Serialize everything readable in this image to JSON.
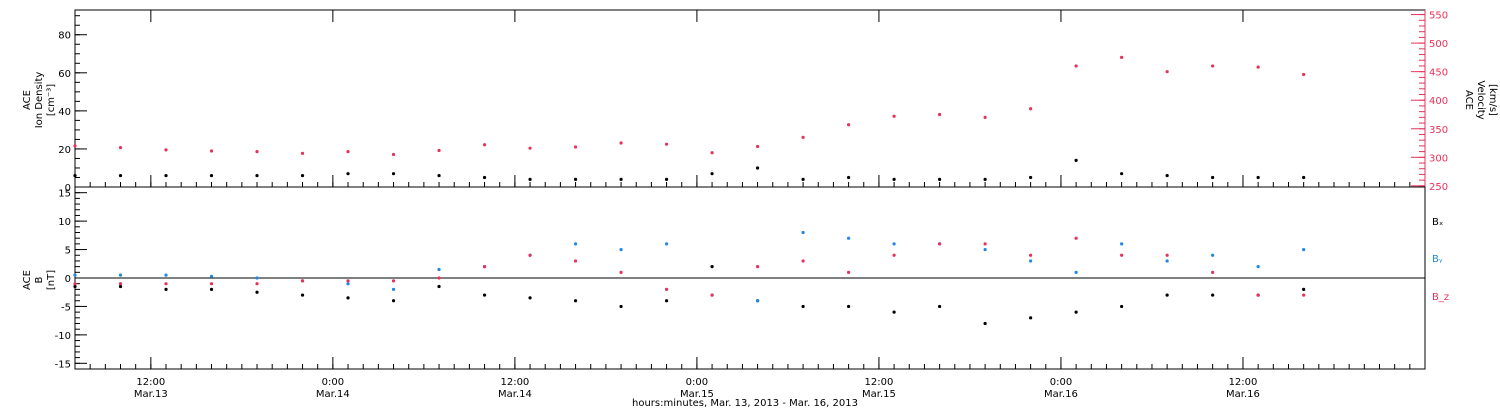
{
  "chart_data": [
    {
      "type": "scatter",
      "panel": "top",
      "ylabel_left": [
        "ACE",
        "Ion Density",
        "[cm⁻³]"
      ],
      "ylabel_right": [
        "ACE",
        "Velocity",
        "[km/s]"
      ],
      "ylim_left": [
        0,
        93
      ],
      "ylim_right": [
        248,
        558
      ],
      "yticks_left": [
        0,
        20,
        40,
        60,
        80
      ],
      "yticks_right": [
        250,
        300,
        350,
        400,
        450,
        500,
        550
      ],
      "series": [
        {
          "color": "#000000",
          "axis": "left",
          "x": [
            0,
            3,
            6,
            9,
            12,
            15,
            18,
            21,
            24,
            27,
            30,
            33,
            36,
            39,
            42,
            45,
            48,
            51,
            54,
            57,
            60,
            63,
            66,
            69,
            72,
            75,
            78,
            81
          ],
          "y": [
            6,
            6,
            6,
            6,
            6,
            6,
            7,
            7,
            6,
            5,
            4,
            4,
            4,
            4,
            7,
            10,
            4,
            5,
            4,
            4,
            4,
            5,
            14,
            7,
            6,
            5,
            5,
            5
          ]
        },
        {
          "color": "#e8315a",
          "axis": "right",
          "x": [
            0,
            3,
            6,
            9,
            12,
            15,
            18,
            21,
            24,
            27,
            30,
            33,
            36,
            39,
            42,
            45,
            48,
            51,
            54,
            57,
            60,
            63,
            66,
            69,
            72,
            75,
            78,
            81
          ],
          "y": [
            320,
            317,
            313,
            311,
            310,
            307,
            310,
            305,
            312,
            322,
            316,
            318,
            325,
            323,
            308,
            319,
            335,
            357,
            372,
            375,
            370,
            385,
            460,
            475,
            450,
            460,
            458,
            445
          ]
        }
      ]
    },
    {
      "type": "scatter",
      "panel": "bottom",
      "ylabel": [
        "ACE",
        "B",
        "[nT]"
      ],
      "ylim": [
        -16,
        16
      ],
      "yticks": [
        -15,
        -10,
        -5,
        0,
        5,
        10,
        15
      ],
      "legend": [
        "Bₓ",
        "Bᵧ",
        "B_z"
      ],
      "series": [
        {
          "name": "Bₓ",
          "color": "#000000",
          "x": [
            0,
            3,
            6,
            9,
            12,
            15,
            18,
            21,
            24,
            27,
            30,
            33,
            36,
            39,
            42,
            45,
            48,
            51,
            54,
            57,
            60,
            63,
            66,
            69,
            72,
            75,
            78,
            81
          ],
          "y": [
            -1.5,
            -1.5,
            -2,
            -2,
            -2.5,
            -3,
            -3.5,
            -4,
            -1.5,
            -3,
            -3.5,
            -4,
            -5,
            -4,
            2,
            -4,
            -5,
            -5,
            -6,
            -5,
            -8,
            -7,
            -6,
            -5,
            -3,
            -3,
            -3,
            -2
          ]
        },
        {
          "name": "Bᵧ",
          "color": "#1e88e5",
          "x": [
            0,
            3,
            6,
            9,
            12,
            15,
            18,
            21,
            24,
            27,
            30,
            33,
            36,
            39,
            42,
            45,
            48,
            51,
            54,
            57,
            60,
            63,
            66,
            69,
            72,
            75,
            78,
            81
          ],
          "y": [
            0.5,
            0.5,
            0.5,
            0.3,
            0,
            -0.5,
            -1,
            -2,
            1.5,
            2,
            4,
            6,
            5,
            6,
            -3,
            -4,
            8,
            7,
            6,
            6,
            5,
            3,
            1,
            6,
            3,
            4,
            2,
            5
          ]
        },
        {
          "name": "B_z",
          "color": "#e8315a",
          "x": [
            0,
            3,
            6,
            9,
            12,
            15,
            18,
            21,
            24,
            27,
            30,
            33,
            36,
            39,
            42,
            45,
            48,
            51,
            54,
            57,
            60,
            63,
            66,
            69,
            72,
            75,
            78,
            81
          ],
          "y": [
            -1,
            -1,
            -1,
            -1,
            -1,
            -0.5,
            -0.5,
            -0.5,
            0,
            2,
            4,
            3,
            1,
            -2,
            -3,
            2,
            3,
            1,
            4,
            6,
            6,
            4,
            7,
            4,
            4,
            1,
            -3,
            -3
          ]
        }
      ]
    },
    {
      "type": "axis",
      "xlabel": "hours:minutes, Mar. 13, 2013 - Mar. 16, 2013",
      "xlim_hours_from_mar13_0700": [
        0,
        89
      ],
      "xticks": [
        {
          "x": 5,
          "time": "12:00",
          "date": "Mar.13"
        },
        {
          "x": 17,
          "time": "0:00",
          "date": "Mar.14"
        },
        {
          "x": 29,
          "time": "12:00",
          "date": "Mar.14"
        },
        {
          "x": 41,
          "time": "0:00",
          "date": "Mar.15"
        },
        {
          "x": 53,
          "time": "12:00",
          "date": "Mar.15"
        },
        {
          "x": 65,
          "time": "0:00",
          "date": "Mar.16"
        },
        {
          "x": 77,
          "time": "12:00",
          "date": "Mar.16"
        }
      ]
    }
  ]
}
